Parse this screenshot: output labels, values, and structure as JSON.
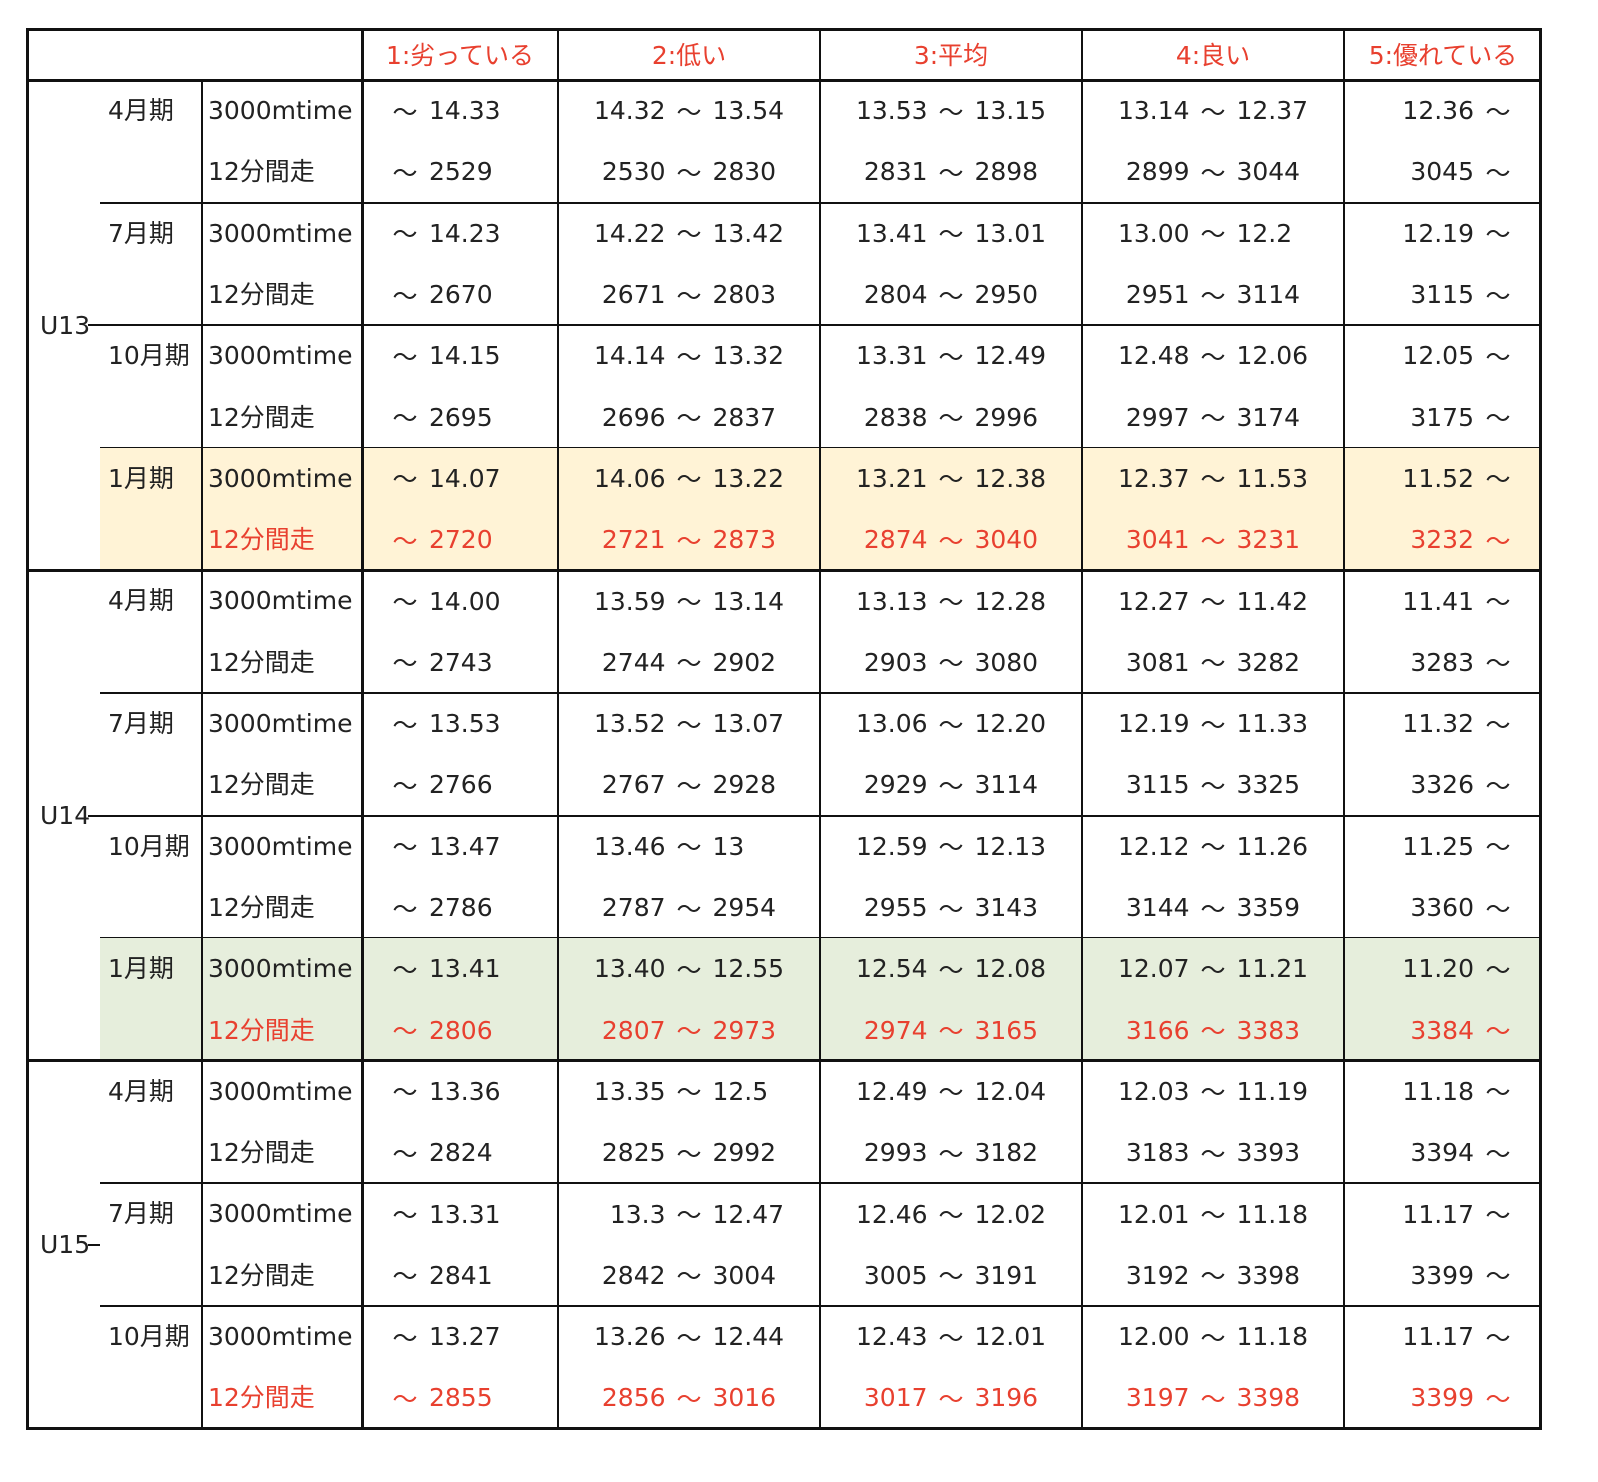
{
  "headers": [
    "1:劣っている",
    "2:低い",
    "3:平均",
    "4:良い",
    "5:優れている"
  ],
  "tilde": "～",
  "metrics": {
    "time": "3000mtime",
    "run": "12分間走"
  },
  "groups": [
    {
      "label": "U13",
      "periods": [
        {
          "label": "4月期",
          "highlight": "",
          "run_red": false,
          "time": [
            [
              "",
              "14.33"
            ],
            [
              "14.32",
              "13.54"
            ],
            [
              "13.53",
              "13.15"
            ],
            [
              "13.14",
              "12.37"
            ],
            [
              "12.36",
              ""
            ]
          ],
          "run": [
            [
              "",
              "2529"
            ],
            [
              "2530",
              "2830"
            ],
            [
              "2831",
              "2898"
            ],
            [
              "2899",
              "3044"
            ],
            [
              "3045",
              ""
            ]
          ]
        },
        {
          "label": "7月期",
          "highlight": "",
          "run_red": false,
          "time": [
            [
              "",
              "14.23"
            ],
            [
              "14.22",
              "13.42"
            ],
            [
              "13.41",
              "13.01"
            ],
            [
              "13.00",
              "12.2"
            ],
            [
              "12.19",
              ""
            ]
          ],
          "run": [
            [
              "",
              "2670"
            ],
            [
              "2671",
              "2803"
            ],
            [
              "2804",
              "2950"
            ],
            [
              "2951",
              "3114"
            ],
            [
              "3115",
              ""
            ]
          ]
        },
        {
          "label": "10月期",
          "highlight": "",
          "run_red": false,
          "time": [
            [
              "",
              "14.15"
            ],
            [
              "14.14",
              "13.32"
            ],
            [
              "13.31",
              "12.49"
            ],
            [
              "12.48",
              "12.06"
            ],
            [
              "12.05",
              ""
            ]
          ],
          "run": [
            [
              "",
              "2695"
            ],
            [
              "2696",
              "2837"
            ],
            [
              "2838",
              "2996"
            ],
            [
              "2997",
              "3174"
            ],
            [
              "3175",
              ""
            ]
          ]
        },
        {
          "label": "1月期",
          "highlight": "yellow",
          "run_red": true,
          "time": [
            [
              "",
              "14.07"
            ],
            [
              "14.06",
              "13.22"
            ],
            [
              "13.21",
              "12.38"
            ],
            [
              "12.37",
              "11.53"
            ],
            [
              "11.52",
              ""
            ]
          ],
          "run": [
            [
              "",
              "2720"
            ],
            [
              "2721",
              "2873"
            ],
            [
              "2874",
              "3040"
            ],
            [
              "3041",
              "3231"
            ],
            [
              "3232",
              ""
            ]
          ]
        }
      ]
    },
    {
      "label": "U14",
      "periods": [
        {
          "label": "4月期",
          "highlight": "",
          "run_red": false,
          "time": [
            [
              "",
              "14.00"
            ],
            [
              "13.59",
              "13.14"
            ],
            [
              "13.13",
              "12.28"
            ],
            [
              "12.27",
              "11.42"
            ],
            [
              "11.41",
              ""
            ]
          ],
          "run": [
            [
              "",
              "2743"
            ],
            [
              "2744",
              "2902"
            ],
            [
              "2903",
              "3080"
            ],
            [
              "3081",
              "3282"
            ],
            [
              "3283",
              ""
            ]
          ]
        },
        {
          "label": "7月期",
          "highlight": "",
          "run_red": false,
          "time": [
            [
              "",
              "13.53"
            ],
            [
              "13.52",
              "13.07"
            ],
            [
              "13.06",
              "12.20"
            ],
            [
              "12.19",
              "11.33"
            ],
            [
              "11.32",
              ""
            ]
          ],
          "run": [
            [
              "",
              "2766"
            ],
            [
              "2767",
              "2928"
            ],
            [
              "2929",
              "3114"
            ],
            [
              "3115",
              "3325"
            ],
            [
              "3326",
              ""
            ]
          ]
        },
        {
          "label": "10月期",
          "highlight": "",
          "run_red": false,
          "time": [
            [
              "",
              "13.47"
            ],
            [
              "13.46",
              "13"
            ],
            [
              "12.59",
              "12.13"
            ],
            [
              "12.12",
              "11.26"
            ],
            [
              "11.25",
              ""
            ]
          ],
          "run": [
            [
              "",
              "2786"
            ],
            [
              "2787",
              "2954"
            ],
            [
              "2955",
              "3143"
            ],
            [
              "3144",
              "3359"
            ],
            [
              "3360",
              ""
            ]
          ]
        },
        {
          "label": "1月期",
          "highlight": "green",
          "run_red": true,
          "time": [
            [
              "",
              "13.41"
            ],
            [
              "13.40",
              "12.55"
            ],
            [
              "12.54",
              "12.08"
            ],
            [
              "12.07",
              "11.21"
            ],
            [
              "11.20",
              ""
            ]
          ],
          "run": [
            [
              "",
              "2806"
            ],
            [
              "2807",
              "2973"
            ],
            [
              "2974",
              "3165"
            ],
            [
              "3166",
              "3383"
            ],
            [
              "3384",
              ""
            ]
          ]
        }
      ]
    },
    {
      "label": "U15",
      "periods": [
        {
          "label": "4月期",
          "highlight": "",
          "run_red": false,
          "time": [
            [
              "",
              "13.36"
            ],
            [
              "13.35",
              "12.5"
            ],
            [
              "12.49",
              "12.04"
            ],
            [
              "12.03",
              "11.19"
            ],
            [
              "11.18",
              ""
            ]
          ],
          "run": [
            [
              "",
              "2824"
            ],
            [
              "2825",
              "2992"
            ],
            [
              "2993",
              "3182"
            ],
            [
              "3183",
              "3393"
            ],
            [
              "3394",
              ""
            ]
          ]
        },
        {
          "label": "7月期",
          "highlight": "",
          "run_red": false,
          "time": [
            [
              "",
              "13.31"
            ],
            [
              "13.3",
              "12.47"
            ],
            [
              "12.46",
              "12.02"
            ],
            [
              "12.01",
              "11.18"
            ],
            [
              "11.17",
              ""
            ]
          ],
          "run": [
            [
              "",
              "2841"
            ],
            [
              "2842",
              "3004"
            ],
            [
              "3005",
              "3191"
            ],
            [
              "3192",
              "3398"
            ],
            [
              "3399",
              ""
            ]
          ]
        },
        {
          "label": "10月期",
          "highlight": "",
          "run_red": true,
          "time": [
            [
              "",
              "13.27"
            ],
            [
              "13.26",
              "12.44"
            ],
            [
              "12.43",
              "12.01"
            ],
            [
              "12.00",
              "11.18"
            ],
            [
              "11.17",
              ""
            ]
          ],
          "run": [
            [
              "",
              "2855"
            ],
            [
              "2856",
              "3016"
            ],
            [
              "3017",
              "3196"
            ],
            [
              "3197",
              "3398"
            ],
            [
              "3399",
              ""
            ]
          ]
        }
      ]
    }
  ]
}
